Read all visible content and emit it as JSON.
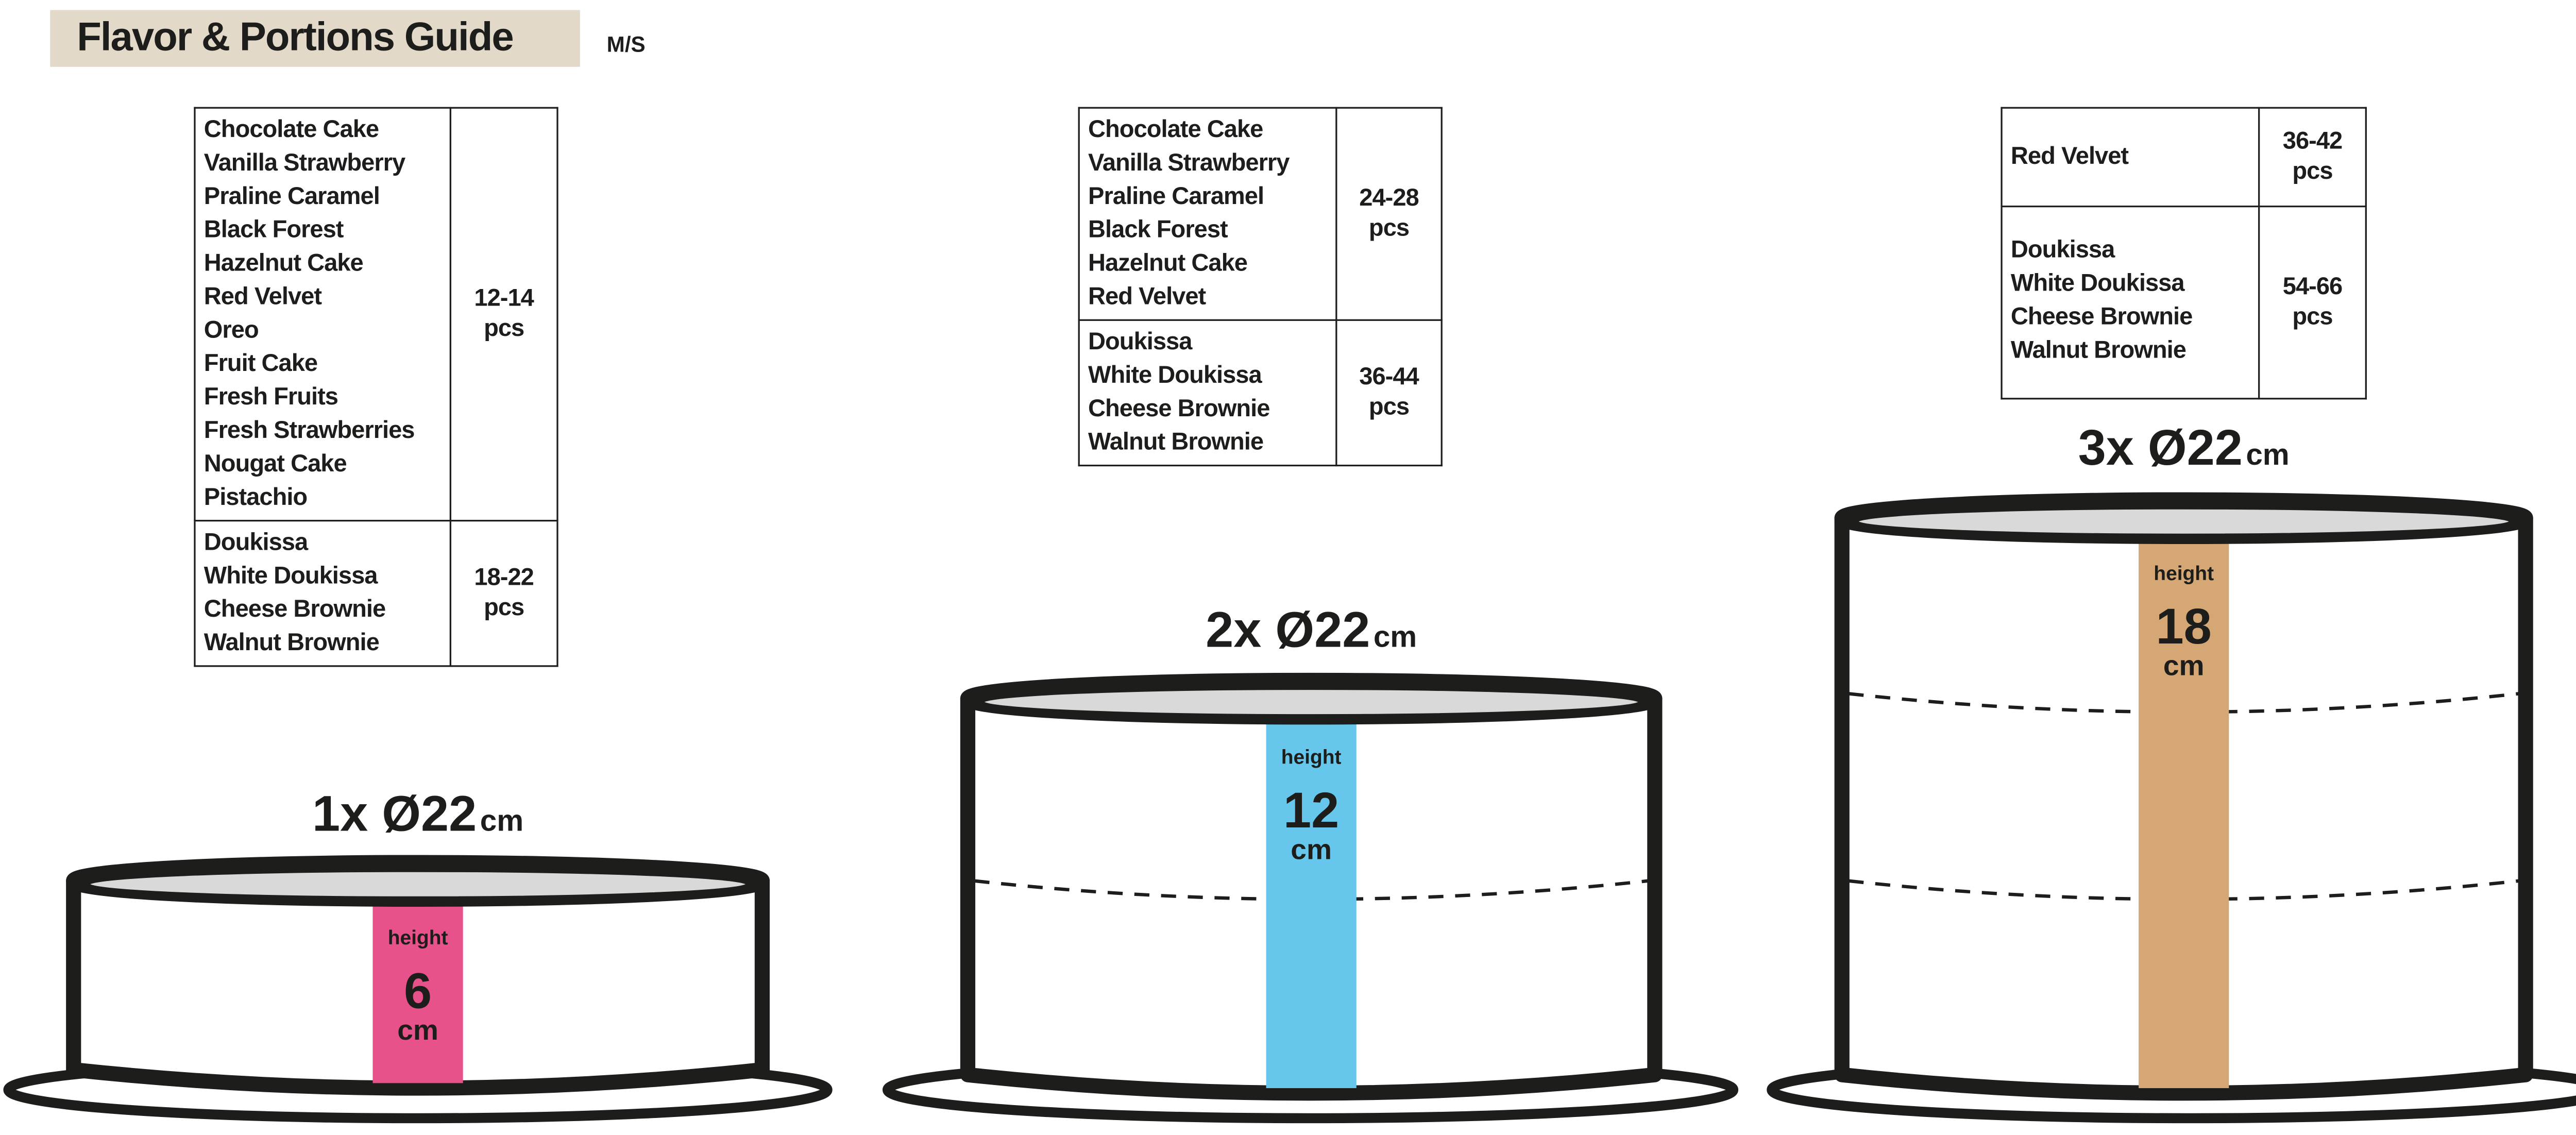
{
  "header": {
    "title": "Flavor & Portions Guide",
    "code": "M/S"
  },
  "tables": [
    {
      "rows": [
        {
          "flavors": [
            "Chocolate Cake",
            "Vanilla Strawberry",
            "Praline Caramel",
            "Black Forest",
            "Hazelnut Cake",
            "Red Velvet",
            "Oreo",
            "Fruit Cake",
            "Fresh Fruits",
            "Fresh Strawberries",
            "Nougat Cake",
            "Pistachio"
          ],
          "range": "12-14",
          "unit": "pcs"
        },
        {
          "flavors": [
            "Doukissa",
            "White Doukissa",
            "Cheese Brownie",
            "Walnut Brownie"
          ],
          "range": "18-22",
          "unit": "pcs"
        }
      ]
    },
    {
      "rows": [
        {
          "flavors": [
            "Chocolate Cake",
            "Vanilla Strawberry",
            "Praline Caramel",
            "Black Forest",
            "Hazelnut Cake",
            "Red Velvet"
          ],
          "range": "24-28",
          "unit": "pcs"
        },
        {
          "flavors": [
            "Doukissa",
            "White Doukissa",
            "Cheese Brownie",
            "Walnut Brownie"
          ],
          "range": "36-44",
          "unit": "pcs"
        }
      ]
    },
    {
      "rows": [
        {
          "flavors": [
            "Red Velvet"
          ],
          "range": "36-42",
          "unit": "pcs"
        },
        {
          "flavors": [
            "Doukissa",
            "White Doukissa",
            "Cheese Brownie",
            "Walnut Brownie"
          ],
          "range": "54-66",
          "unit": "pcs"
        }
      ]
    }
  ],
  "cakes": [
    {
      "size": "1x  Ø22",
      "size_unit": "cm",
      "height_label": "height",
      "height": "6",
      "height_unit": "cm",
      "color": "#e8528a"
    },
    {
      "size": "2x  Ø22",
      "size_unit": "cm",
      "height_label": "height",
      "height": "12",
      "height_unit": "cm",
      "color": "#66c6ec"
    },
    {
      "size": "3x  Ø22",
      "size_unit": "cm",
      "height_label": "height",
      "height": "18",
      "height_unit": "cm",
      "color": "#d4a774"
    }
  ],
  "colors": {
    "title_bg": "#e3d9c8",
    "outline": "#1d1d1b",
    "cake_top": "#d9d9d9"
  }
}
